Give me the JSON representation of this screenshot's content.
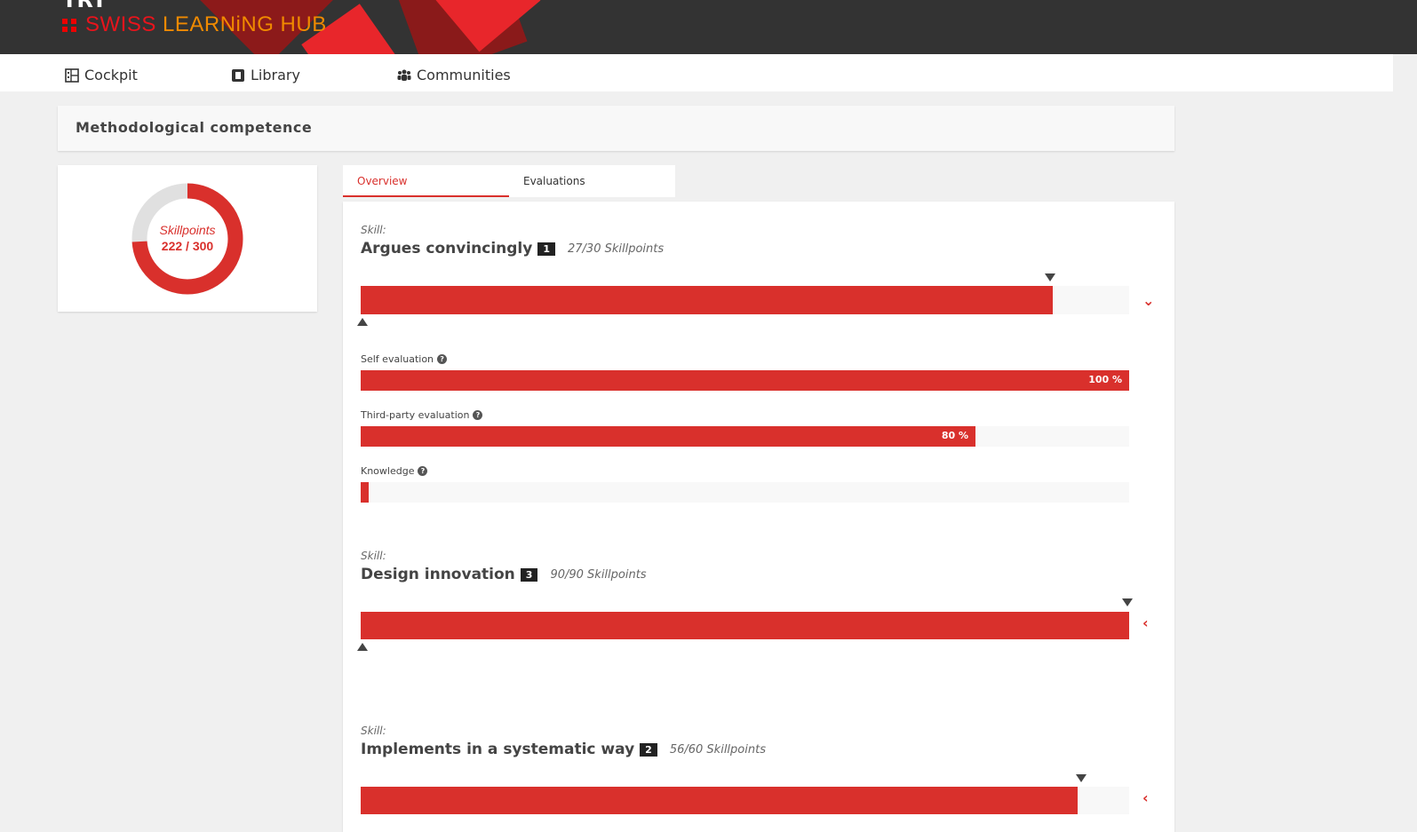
{
  "header": {
    "logo_top": "TRT",
    "logo_swiss": "SWISS",
    "logo_rest": "LEARNiNG HUB"
  },
  "nav": [
    {
      "label": "Cockpit",
      "icon": "dashboard-icon"
    },
    {
      "label": "Library",
      "icon": "book-icon"
    },
    {
      "label": "Communities",
      "icon": "users-icon"
    }
  ],
  "page_title": "Methodological competence",
  "donut": {
    "label": "Skillpoints",
    "value_text": "222 / 300",
    "value": 222,
    "total": 300,
    "color": "#d9302c",
    "track": "#e0e0e0"
  },
  "tabs": [
    {
      "label": "Overview",
      "active": true
    },
    {
      "label": "Evaluations",
      "active": false
    }
  ],
  "skill_prefix": "Skill:",
  "skills": [
    {
      "name": "Argues convincingly",
      "level": "1",
      "points_text": "27/30 Skillpoints",
      "progress": 0.9,
      "expanded": true,
      "evaluations": [
        {
          "label": "Self evaluation",
          "value": 100,
          "text": "100 %"
        },
        {
          "label": "Third-party evaluation",
          "value": 80,
          "text": "80 %"
        },
        {
          "label": "Knowledge",
          "value": 1,
          "text": ""
        }
      ]
    },
    {
      "name": "Design innovation",
      "level": "3",
      "points_text": "90/90 Skillpoints",
      "progress": 1.0,
      "expanded": false
    },
    {
      "name": "Implements in a systematic way",
      "level": "2",
      "points_text": "56/60 Skillpoints",
      "progress": 0.933,
      "expanded": false
    }
  ],
  "colors": {
    "accent": "#d9302c",
    "header": "#333333"
  }
}
